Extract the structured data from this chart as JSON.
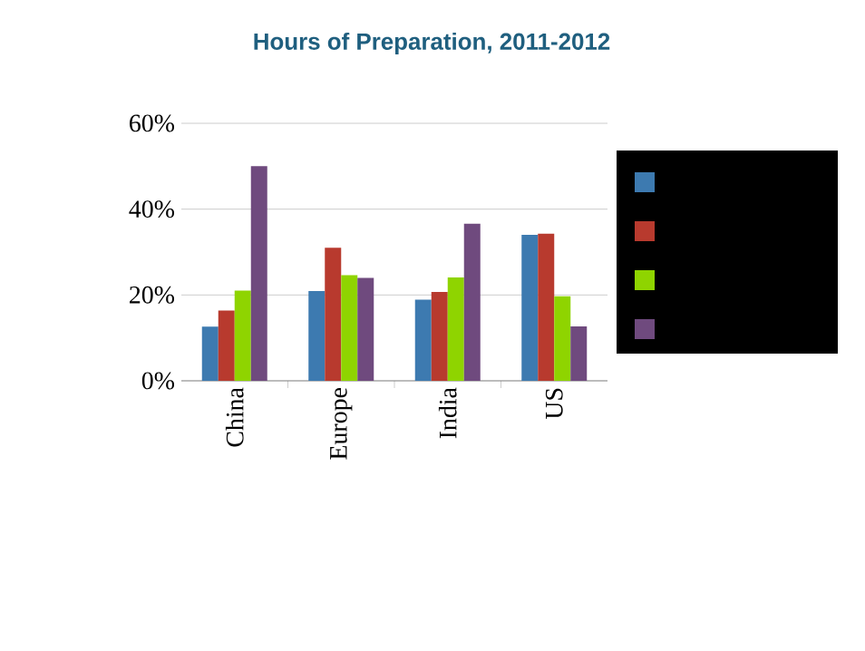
{
  "chart_data": {
    "type": "bar",
    "title": "Hours of Preparation, 2011-2012",
    "categories": [
      "China",
      "Europe",
      "India",
      "US"
    ],
    "series": [
      {
        "color": "#3d7ab0",
        "values": [
          12.6,
          20.9,
          18.9,
          34
        ]
      },
      {
        "color": "#b83a2e",
        "values": [
          16.4,
          31,
          20.7,
          34.3
        ]
      },
      {
        "color": "#8fd400",
        "values": [
          21,
          24.6,
          24.1,
          19.7
        ]
      },
      {
        "color": "#6f4a7e",
        "values": [
          50,
          24,
          36.6,
          12.7
        ]
      }
    ],
    "ylim": [
      0,
      60
    ],
    "yticks": [
      {
        "value": 0,
        "label": "0%"
      },
      {
        "value": 20,
        "label": "20%"
      },
      {
        "value": 40,
        "label": "40%"
      },
      {
        "value": 60,
        "label": "60%"
      }
    ],
    "grid": "y"
  }
}
